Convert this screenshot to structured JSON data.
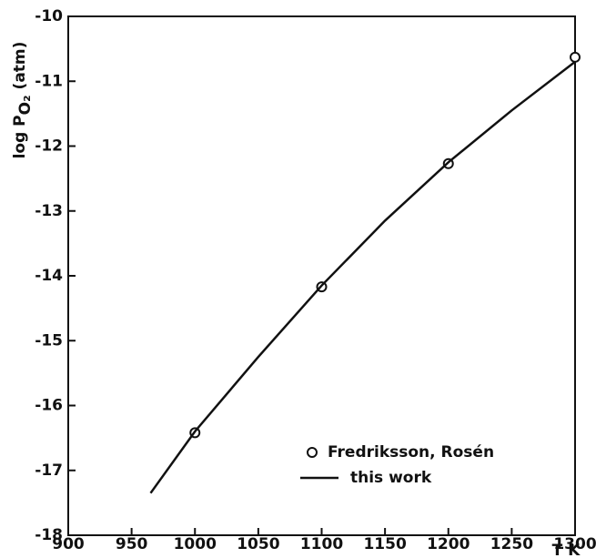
{
  "chart_data": {
    "type": "line",
    "y_label": [
      "log P",
      "O₂",
      "(atm)"
    ],
    "x_label": "T K",
    "xlim": [
      900,
      1300
    ],
    "xticks": [
      900,
      950,
      1000,
      1050,
      1100,
      1150,
      1200,
      1250,
      1300
    ],
    "ylim": [
      -18,
      -10
    ],
    "yticks": [
      -18,
      -17,
      -16,
      -15,
      -14,
      -13,
      -12,
      -11,
      -10
    ],
    "grid": false,
    "legend": "lower right",
    "series": [
      {
        "name": "Fredriksson, Rosén",
        "style": "markers",
        "color": "#111111",
        "x": [
          1000,
          1100,
          1200,
          1300
        ],
        "values": [
          -16.42,
          -14.17,
          -12.27,
          -10.63
        ]
      },
      {
        "name": "this work",
        "style": "line",
        "color": "#111111",
        "x": [
          965,
          1000,
          1050,
          1100,
          1150,
          1200,
          1250,
          1300
        ],
        "values": [
          -17.35,
          -16.4,
          -15.25,
          -14.15,
          -13.15,
          -12.25,
          -11.45,
          -10.7
        ]
      }
    ]
  }
}
